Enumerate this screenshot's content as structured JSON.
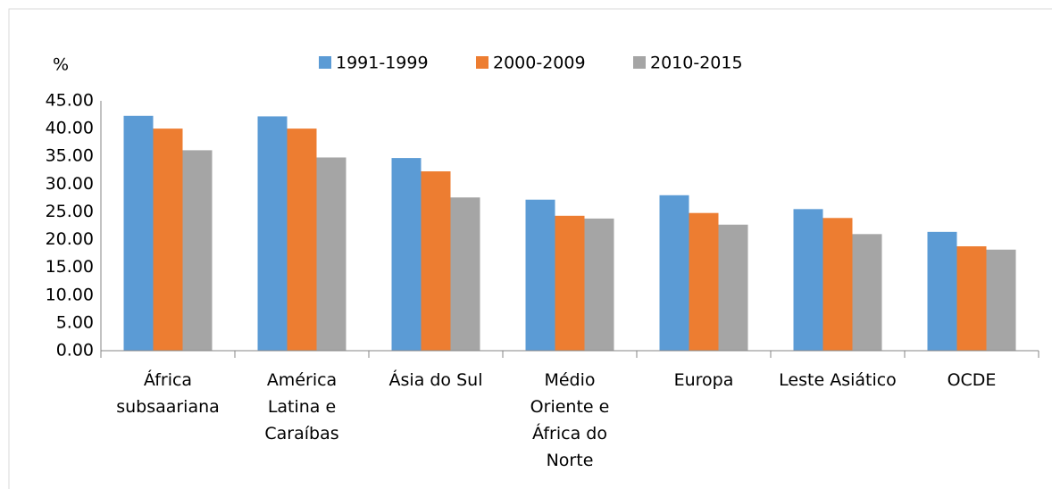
{
  "chart_data": {
    "type": "bar",
    "y_label": "%",
    "categories": [
      "África\nsubsaariana",
      "América\nLatina e\nCaraíbas",
      "Ásia do Sul",
      "Médio\nOriente e\nÁfrica do\nNorte",
      "Europa",
      "Leste Asiático",
      "OCDE"
    ],
    "series": [
      {
        "name": "1991-1999",
        "color": "#5b9bd5",
        "values": [
          42.3,
          42.2,
          34.7,
          27.2,
          28.0,
          25.5,
          21.4
        ]
      },
      {
        "name": "2000-2009",
        "color": "#ed7d31",
        "values": [
          40.0,
          40.0,
          32.3,
          24.3,
          24.8,
          23.9,
          18.8
        ]
      },
      {
        "name": "2010-2015",
        "color": "#a5a5a5",
        "values": [
          36.1,
          34.8,
          27.6,
          23.8,
          22.7,
          21.0,
          18.2
        ]
      }
    ],
    "ylim": [
      0,
      45
    ],
    "yticks": [
      {
        "value": 0,
        "label": "0.00"
      },
      {
        "value": 5,
        "label": "5.00"
      },
      {
        "value": 10,
        "label": "10.00"
      },
      {
        "value": 15,
        "label": "15.00"
      },
      {
        "value": 20,
        "label": "20.00"
      },
      {
        "value": 25,
        "label": "25.00"
      },
      {
        "value": 30,
        "label": "30.00"
      },
      {
        "value": 35,
        "label": "35.00"
      },
      {
        "value": 40,
        "label": "40.00"
      },
      {
        "value": 45,
        "label": "45.00"
      }
    ],
    "grid": false,
    "legend": "top"
  }
}
